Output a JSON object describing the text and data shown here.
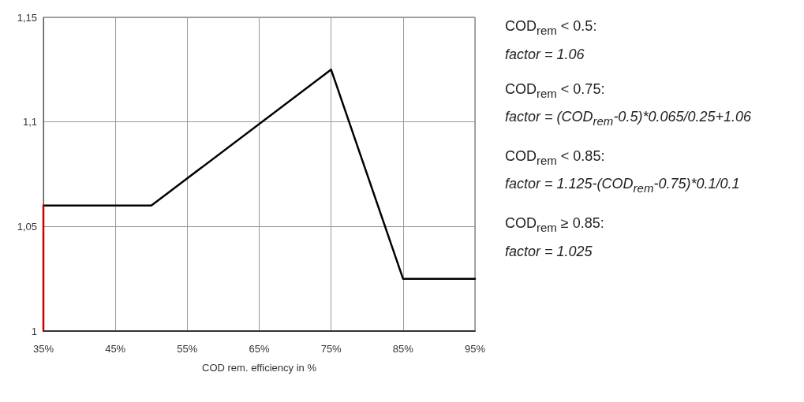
{
  "chart_data": {
    "type": "line",
    "xlabel": "COD rem. efficiency in %",
    "series": [
      {
        "color": "#000000",
        "x": [
          35,
          50,
          75,
          85,
          95
        ],
        "values": [
          1.06,
          1.06,
          1.125,
          1.025,
          1.025
        ]
      },
      {
        "color": "#cc0000",
        "x": [
          35,
          35
        ],
        "values": [
          1,
          1.06
        ]
      }
    ],
    "xlim": [
      35,
      95
    ],
    "xticks": [
      {
        "value": 35,
        "label": "35%"
      },
      {
        "value": 45,
        "label": "45%"
      },
      {
        "value": 55,
        "label": "55%"
      },
      {
        "value": 65,
        "label": "65%"
      },
      {
        "value": 75,
        "label": "75%"
      },
      {
        "value": 85,
        "label": "85%"
      },
      {
        "value": 95,
        "label": "95%"
      }
    ],
    "ylim": [
      1,
      1.15
    ],
    "yticks": [
      1,
      {
        "value": 1.05,
        "label": "1,05"
      },
      {
        "value": 1.1,
        "label": "1,1"
      },
      {
        "value": 1.15,
        "label": "1,15"
      }
    ],
    "grid": true,
    "marker": "none",
    "line_style": "solid",
    "annotations": [
      "COD$_{rem}$ < 0.5:",
      "factor = 1.06",
      "COD$_{rem}$ < 0.75:",
      "factor = (COD$_{rem}$-0.5)*0.065/0.25+1.06",
      "COD$_{rem}$ < 0.85:",
      "factor = 1.125-(COD$_{rem}$-0.75)*0.1/0.1",
      "COD$_{rem}$ ≥ 0.85:",
      "factor = 1.025"
    ]
  }
}
